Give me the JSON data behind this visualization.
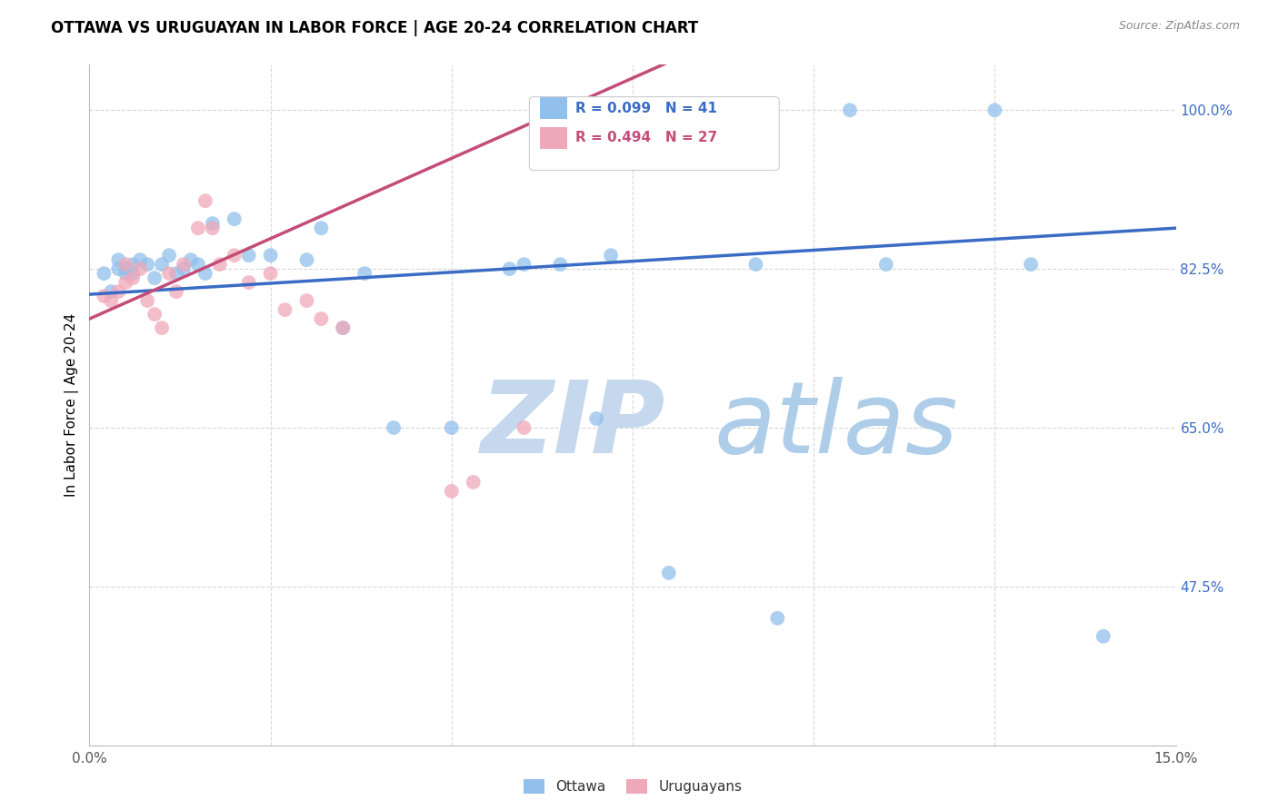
{
  "title": "OTTAWA VS URUGUAYAN IN LABOR FORCE | AGE 20-24 CORRELATION CHART",
  "source": "Source: ZipAtlas.com",
  "ylabel": "In Labor Force | Age 20-24",
  "xlim": [
    0.0,
    0.15
  ],
  "ylim": [
    0.3,
    1.05
  ],
  "ytick_labels": [
    "100.0%",
    "82.5%",
    "65.0%",
    "47.5%"
  ],
  "ytick_positions": [
    1.0,
    0.825,
    0.65,
    0.475
  ],
  "grid_color": "#d8d8d8",
  "background_color": "#ffffff",
  "ottawa_color": "#92C0EC",
  "uruguayan_color": "#EFA8B8",
  "ottawa_line_color": "#3B6CC5",
  "uruguayan_line_color": "#C44D78",
  "legend_R_ottawa": "R = 0.099",
  "legend_N_ottawa": "N = 41",
  "legend_R_uruguayan": "R = 0.494",
  "legend_N_uruguayan": "N = 27",
  "watermark_zip": "ZIP",
  "watermark_atlas": "atlas",
  "watermark_color_zip": "#C8D8EC",
  "watermark_color_atlas": "#C0D0E8"
}
